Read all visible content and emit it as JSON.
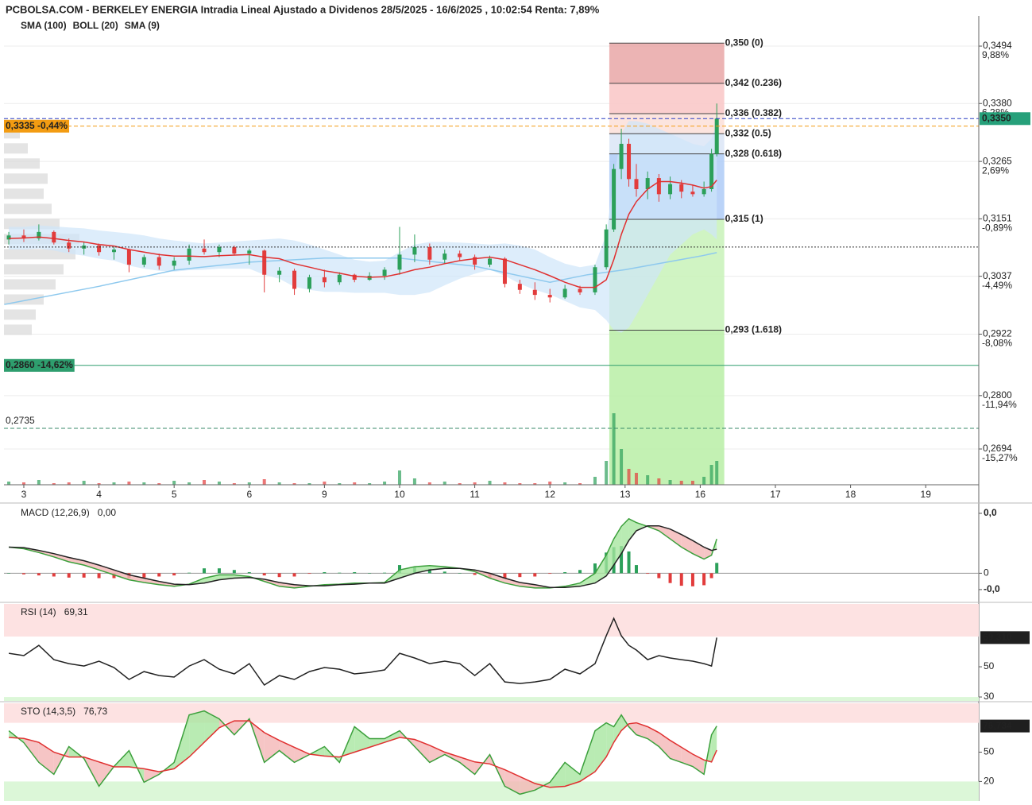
{
  "chart_data": {
    "type": "candlestick",
    "title": "PCBOLSA.COM - BERKELEY ENERGIA Intradia Lineal Ajustado a Dividenos 28/5/2025 - 16/6/2025 , 10:02:54 Renta: 7,89%",
    "legend": [
      {
        "name": "SMA (100)",
        "color": "#8ec9ee"
      },
      {
        "name": "BOLL (20)",
        "color": "#c8c8c8"
      },
      {
        "name": "SMA (9)",
        "color": "#e03030"
      }
    ],
    "up_color": "#2ca05a",
    "down_color": "#e23c3c",
    "x": [
      -0.2,
      0,
      0.2,
      0.4,
      0.6,
      0.8,
      1,
      1.2,
      1.4,
      1.6,
      1.8,
      2,
      2.2,
      2.4,
      2.6,
      2.8,
      3,
      3.2,
      3.4,
      3.6,
      3.8,
      4,
      4.2,
      4.4,
      4.6,
      4.8,
      5,
      5.2,
      5.4,
      5.6,
      5.8,
      6,
      6.2,
      6.4,
      6.6,
      6.8,
      7,
      7.2,
      7.4,
      7.6,
      7.75,
      7.85,
      7.95,
      8.05,
      8.15,
      8.3,
      8.45,
      8.6,
      8.75,
      8.9,
      9.05,
      9.15,
      9.22
    ],
    "open": [
      0.311,
      0.3118,
      0.3112,
      0.3125,
      0.3104,
      0.3092,
      0.3098,
      0.3085,
      0.309,
      0.306,
      0.3075,
      0.3058,
      0.3068,
      0.3092,
      0.3085,
      0.3095,
      0.3082,
      0.3088,
      0.304,
      0.3048,
      0.3012,
      0.3035,
      0.3025,
      0.304,
      0.303,
      0.3038,
      0.305,
      0.308,
      0.3095,
      0.307,
      0.3082,
      0.3075,
      0.306,
      0.3072,
      0.3022,
      0.301,
      0.3,
      0.2995,
      0.3012,
      0.3005,
      0.3055,
      0.313,
      0.325,
      0.33,
      0.323,
      0.321,
      0.3232,
      0.32,
      0.322,
      0.3205,
      0.32,
      0.321,
      0.328
    ],
    "high": [
      0.3125,
      0.313,
      0.314,
      0.3128,
      0.3112,
      0.3105,
      0.3102,
      0.3095,
      0.3092,
      0.308,
      0.3082,
      0.3075,
      0.31,
      0.311,
      0.31,
      0.3098,
      0.3092,
      0.309,
      0.3055,
      0.3052,
      0.304,
      0.305,
      0.3045,
      0.3042,
      0.3045,
      0.3055,
      0.3135,
      0.312,
      0.3102,
      0.309,
      0.3088,
      0.308,
      0.3078,
      0.3075,
      0.303,
      0.3025,
      0.3012,
      0.302,
      0.3018,
      0.306,
      0.314,
      0.326,
      0.333,
      0.331,
      0.326,
      0.3245,
      0.324,
      0.3235,
      0.3228,
      0.3218,
      0.3225,
      0.329,
      0.338
    ],
    "low": [
      0.31,
      0.3105,
      0.3108,
      0.31,
      0.3085,
      0.308,
      0.3078,
      0.307,
      0.3045,
      0.3055,
      0.305,
      0.305,
      0.306,
      0.308,
      0.3075,
      0.3078,
      0.306,
      0.3005,
      0.3025,
      0.3,
      0.3005,
      0.3015,
      0.302,
      0.3025,
      0.3028,
      0.303,
      0.304,
      0.3065,
      0.306,
      0.3062,
      0.3068,
      0.305,
      0.3055,
      0.3015,
      0.3002,
      0.299,
      0.2985,
      0.2992,
      0.3,
      0.3,
      0.305,
      0.3125,
      0.323,
      0.3215,
      0.3195,
      0.319,
      0.3185,
      0.319,
      0.3192,
      0.3195,
      0.3195,
      0.3205,
      0.3275
    ],
    "close": [
      0.3118,
      0.3112,
      0.3125,
      0.3104,
      0.3092,
      0.3098,
      0.3085,
      0.309,
      0.306,
      0.3075,
      0.3058,
      0.3068,
      0.3092,
      0.3085,
      0.3095,
      0.3082,
      0.3088,
      0.304,
      0.3048,
      0.3012,
      0.3035,
      0.3025,
      0.304,
      0.303,
      0.3038,
      0.305,
      0.308,
      0.3095,
      0.307,
      0.3082,
      0.3075,
      0.306,
      0.3072,
      0.3022,
      0.301,
      0.3,
      0.2995,
      0.3012,
      0.3005,
      0.3055,
      0.313,
      0.325,
      0.33,
      0.323,
      0.321,
      0.3232,
      0.32,
      0.322,
      0.3205,
      0.32,
      0.321,
      0.328,
      0.335
    ],
    "sma9": [
      0.3112,
      0.3113,
      0.3115,
      0.3112,
      0.3108,
      0.3105,
      0.31,
      0.3097,
      0.309,
      0.3085,
      0.308,
      0.3077,
      0.3077,
      0.3076,
      0.3078,
      0.3079,
      0.308,
      0.3075,
      0.3072,
      0.3062,
      0.3055,
      0.3048,
      0.3043,
      0.3037,
      0.3035,
      0.3036,
      0.3042,
      0.305,
      0.3055,
      0.3062,
      0.3068,
      0.3072,
      0.3075,
      0.307,
      0.306,
      0.305,
      0.3038,
      0.3025,
      0.3015,
      0.3015,
      0.303,
      0.307,
      0.312,
      0.316,
      0.3185,
      0.321,
      0.3225,
      0.3225,
      0.3222,
      0.3218,
      0.3212,
      0.3215,
      0.3228
    ],
    "boll_upper": [
      0.3135,
      0.3135,
      0.3138,
      0.3136,
      0.3134,
      0.3132,
      0.3128,
      0.3125,
      0.3122,
      0.3118,
      0.3112,
      0.3108,
      0.3105,
      0.3102,
      0.3104,
      0.3106,
      0.3108,
      0.311,
      0.3112,
      0.3108,
      0.31,
      0.309,
      0.308,
      0.307,
      0.3066,
      0.3068,
      0.3085,
      0.31,
      0.3105,
      0.3105,
      0.3104,
      0.3102,
      0.31,
      0.3102,
      0.3098,
      0.309,
      0.3075,
      0.3062,
      0.3055,
      0.306,
      0.312,
      0.323,
      0.332,
      0.3345,
      0.3345,
      0.334,
      0.333,
      0.332,
      0.331,
      0.33,
      0.3295,
      0.331,
      0.334
    ],
    "boll_lower": [
      0.309,
      0.309,
      0.3092,
      0.3088,
      0.3082,
      0.3078,
      0.3072,
      0.3068,
      0.3058,
      0.3052,
      0.3048,
      0.3046,
      0.3049,
      0.305,
      0.3052,
      0.3052,
      0.3052,
      0.304,
      0.3032,
      0.3016,
      0.301,
      0.3006,
      0.3006,
      0.3004,
      0.3004,
      0.3004,
      0.3,
      0.3,
      0.3005,
      0.3019,
      0.3032,
      0.3042,
      0.305,
      0.3038,
      0.3022,
      0.301,
      0.3001,
      0.2988,
      0.2975,
      0.297,
      0.295,
      0.293,
      0.2925,
      0.2935,
      0.296,
      0.3,
      0.304,
      0.308,
      0.31,
      0.312,
      0.313,
      0.312,
      0.311
    ],
    "sma100": {
      "x": [
        -0.26,
        1,
        2,
        3,
        4,
        5,
        6,
        7,
        7.5,
        8,
        9,
        9.22
      ],
      "values": [
        0.2981,
        0.3017,
        0.3049,
        0.3065,
        0.3073,
        0.3073,
        0.3057,
        0.3025,
        0.304,
        0.305,
        0.3077,
        0.3084
      ]
    },
    "volume": [
      4,
      3,
      6,
      2,
      3,
      5,
      2,
      3,
      4,
      3,
      2,
      5,
      3,
      6,
      4,
      2,
      3,
      7,
      3,
      2,
      2,
      4,
      2,
      3,
      2,
      4,
      18,
      8,
      3,
      4,
      2,
      3,
      5,
      3,
      2,
      2,
      4,
      3,
      2,
      10,
      30,
      90,
      45,
      20,
      15,
      12,
      8,
      6,
      5,
      5,
      10,
      25,
      30
    ],
    "volume_lim": [
      0,
      90
    ],
    "volume_profile": {
      "prices": [
        0.332,
        0.329,
        0.326,
        0.323,
        0.32,
        0.317,
        0.314,
        0.311,
        0.308,
        0.305,
        0.302,
        0.299,
        0.296,
        0.293
      ],
      "sizes": [
        20,
        30,
        45,
        55,
        50,
        60,
        70,
        95,
        90,
        75,
        65,
        50,
        40,
        35
      ]
    },
    "xlim": [
      -0.264,
      12.706
    ],
    "xticks": [
      {
        "value": 0,
        "label": "3"
      },
      {
        "value": 1,
        "label": "4"
      },
      {
        "value": 2,
        "label": "5"
      },
      {
        "value": 3,
        "label": "6"
      },
      {
        "value": 4,
        "label": "9"
      },
      {
        "value": 5,
        "label": "10"
      },
      {
        "value": 6,
        "label": "11"
      },
      {
        "value": 7,
        "label": "12"
      },
      {
        "value": 8,
        "label": "13"
      },
      {
        "value": 9,
        "label": "16"
      },
      {
        "value": 10,
        "label": "17"
      },
      {
        "value": 11,
        "label": "18"
      },
      {
        "value": 12,
        "label": "19"
      }
    ],
    "ylim": [
      0.2623,
      0.3554
    ],
    "yticks": [
      {
        "value": 0.3494,
        "label": "0,3494",
        "pct": "9,88%"
      },
      {
        "value": 0.338,
        "label": "0,3380",
        "pct": "6,28%"
      },
      {
        "value": 0.3265,
        "label": "0,3265",
        "pct": "2,69%"
      },
      {
        "value": 0.3151,
        "label": "0,3151",
        "pct": "-0,89%"
      },
      {
        "value": 0.3037,
        "label": "0,3037",
        "pct": "-4,49%"
      },
      {
        "value": 0.2922,
        "label": "0,2922",
        "pct": "-8,08%"
      },
      {
        "value": 0.28,
        "label": "0,2800",
        "pct": "-11,94%"
      },
      {
        "value": 0.2694,
        "label": "0,2694",
        "pct": "-15,27%"
      }
    ],
    "grid": true,
    "fib": {
      "x": [
        7.79,
        9.32
      ],
      "levels": [
        {
          "value": 0.35,
          "label": "0,350 (0)",
          "color": "#e88b8b",
          "zone": "#e9a7a7"
        },
        {
          "value": 0.342,
          "label": "0,342 (0.236)",
          "color": "#f08a8a",
          "zone": "#f9c6c6"
        },
        {
          "value": 0.336,
          "label": "0,336 (0.382)",
          "color": "#f4a6a6",
          "zone": "#fcdfd8"
        },
        {
          "value": 0.332,
          "label": "0,332 (0.5)",
          "color": "#8a9bb5",
          "zone": "#dbe5f6"
        },
        {
          "value": 0.328,
          "label": "0,328 (0.618)",
          "color": "#4a90e2",
          "zone": "#aecbf7"
        },
        {
          "value": 0.315,
          "label": "0,315 (1)",
          "color": "#5cc43c",
          "zone": "#c8f2b8"
        },
        {
          "value": 0.293,
          "label": "0,293 (1.618)",
          "color": "#5cc43c",
          "zone": "#b9eea6"
        }
      ]
    },
    "price_lines": [
      {
        "value": 0.3335,
        "label": "0,3335 -0,44%",
        "color": "#f39c12",
        "style": "dashed",
        "side": "left"
      },
      {
        "value": 0.335,
        "label": "0,3350",
        "color": "#2b3fc4",
        "style": "dashed",
        "side": "right",
        "box": "#26a07a"
      },
      {
        "value": 0.286,
        "label": "0,2860 -14,62%",
        "color": "#2e9e6e",
        "style": "solid",
        "side": "left"
      },
      {
        "value": 0.2735,
        "label": "0,2735",
        "color": "#3a8a6a",
        "style": "dashed",
        "side": "plain"
      },
      {
        "value": 0.3095,
        "color": "#333333",
        "style": "dotted"
      }
    ],
    "indicators": [
      {
        "type": "macd",
        "title": "MACD (12,26,9)",
        "value_label": "0,00",
        "macd": [
          0.00048,
          0.00045,
          0.00038,
          0.0003,
          0.00021,
          0.00015,
          6e-05,
          -3e-05,
          -0.00012,
          -0.00017,
          -0.00021,
          -0.00024,
          -0.0002,
          -9e-05,
          -3e-05,
          -3e-05,
          -6e-05,
          -0.00015,
          -0.00024,
          -0.00027,
          -0.00024,
          -0.00021,
          -0.0002,
          -0.00018,
          -0.00018,
          -0.00017,
          6e-05,
          0.00012,
          0.00014,
          0.00012,
          9e-05,
          3e-05,
          -9e-05,
          -0.00018,
          -0.00024,
          -0.00027,
          -0.00027,
          -0.00024,
          -0.00018,
          0,
          0.00033,
          0.00063,
          0.00086,
          0.001,
          0.00093,
          0.00086,
          0.00078,
          0.00063,
          0.00048,
          0.00036,
          0.00026,
          0.00033,
          0.00063
        ],
        "signal": [
          0.00048,
          0.00047,
          0.00042,
          0.00036,
          0.00029,
          0.00023,
          0.00015,
          6e-05,
          -3e-05,
          -9e-05,
          -0.00015,
          -0.0002,
          -0.00021,
          -0.00018,
          -0.00012,
          -9e-05,
          -8e-05,
          -0.00011,
          -0.00017,
          -0.00021,
          -0.00023,
          -0.00023,
          -0.00021,
          -0.0002,
          -0.00018,
          -0.00018,
          -9e-05,
          0,
          6e-05,
          9e-05,
          9e-05,
          6e-05,
          0,
          -9e-05,
          -0.00017,
          -0.00021,
          -0.00026,
          -0.00026,
          -0.00024,
          -0.00018,
          -5e-05,
          0.00015,
          0.00036,
          0.0006,
          0.00078,
          0.00087,
          0.00087,
          0.00081,
          0.00071,
          0.0006,
          0.00048,
          0.00042,
          0.00044
        ],
        "hist": [
          0,
          -2e-05,
          -4e-05,
          -6e-05,
          -8e-05,
          -8e-05,
          -9e-05,
          -9e-05,
          -9e-05,
          -8e-05,
          -6e-05,
          -4e-05,
          1e-05,
          9e-05,
          9e-05,
          6e-05,
          2e-05,
          -4e-05,
          -7e-05,
          -6e-05,
          -1e-05,
          2e-05,
          1e-05,
          2e-05,
          0,
          1e-05,
          0.00015,
          0.00012,
          8e-05,
          3e-05,
          0,
          -3e-05,
          -9e-05,
          -9e-05,
          -7e-05,
          -6e-05,
          -1e-05,
          2e-05,
          6e-05,
          0.00018,
          0.00038,
          0.00048,
          0.0005,
          0.0004,
          0.00015,
          -1e-05,
          -9e-05,
          -0.00018,
          -0.00023,
          -0.00024,
          -0.00022,
          -9e-05,
          0.00019
        ],
        "ylim": [
          -0.00052,
          0.00126
        ],
        "yticks": [
          {
            "value": 0.0011,
            "label": "0,0"
          },
          0,
          {
            "value": -0.0003,
            "label": "-0,0"
          }
        ]
      },
      {
        "type": "rsi",
        "title": "RSI (14)",
        "value_label": "69,31",
        "values": [
          58.9,
          57.4,
          64.2,
          54.7,
          52.1,
          50.5,
          53.7,
          49.5,
          41.6,
          46.8,
          44.2,
          43.2,
          50.5,
          54.7,
          48.4,
          45.3,
          52.1,
          37.9,
          44.2,
          41.6,
          46.8,
          49.5,
          48.4,
          45.3,
          46.3,
          47.9,
          58.9,
          55.8,
          52.1,
          53.7,
          52.1,
          44.2,
          52.1,
          40,
          38.9,
          40,
          41.6,
          48.4,
          45.3,
          52.1,
          70.5,
          82.1,
          70.5,
          64.2,
          61.1,
          54.7,
          57.4,
          55.8,
          54.7,
          53.7,
          52.1,
          50.5,
          69.31
        ],
        "last_label": "69,310",
        "ylim": [
          27.4,
          91.6
        ],
        "yticks": [
          50,
          30
        ],
        "bands": [
          70,
          30
        ]
      },
      {
        "type": "sto",
        "title": "STO (14,3,5)",
        "value_label": "76,73",
        "k": [
          71.9,
          59.7,
          39.5,
          27.3,
          55.7,
          43.5,
          15.1,
          35.4,
          51.6,
          19.2,
          27.3,
          39.5,
          88.1,
          92.2,
          84.1,
          67.8,
          84.1,
          39.5,
          51.6,
          39.5,
          47.6,
          55.7,
          39.5,
          76,
          63.8,
          63.8,
          71.9,
          55.7,
          39.5,
          47.6,
          39.5,
          27.3,
          47.6,
          15.1,
          7,
          11.1,
          19.2,
          39.5,
          27.3,
          71.9,
          80,
          76,
          88.1,
          76,
          67.8,
          63.8,
          55.7,
          43.5,
          39.5,
          35.4,
          27.3,
          67.8,
          76.734
        ],
        "d": [
          65,
          64,
          60,
          50,
          45,
          45,
          40,
          35,
          35,
          33,
          30,
          33,
          45,
          60,
          75,
          82,
          82,
          70,
          62,
          55,
          48,
          46,
          45,
          50,
          55,
          60,
          65,
          63,
          57,
          50,
          45,
          40,
          38,
          32,
          25,
          18,
          14,
          15,
          20,
          30,
          45,
          60,
          72,
          79,
          80,
          76,
          70,
          62,
          55,
          48,
          42,
          40,
          52
        ],
        "last_label": "76,734",
        "ylim": [
          0,
          100
        ],
        "yticks": [
          50,
          20
        ],
        "bands": [
          80,
          20
        ]
      }
    ]
  }
}
